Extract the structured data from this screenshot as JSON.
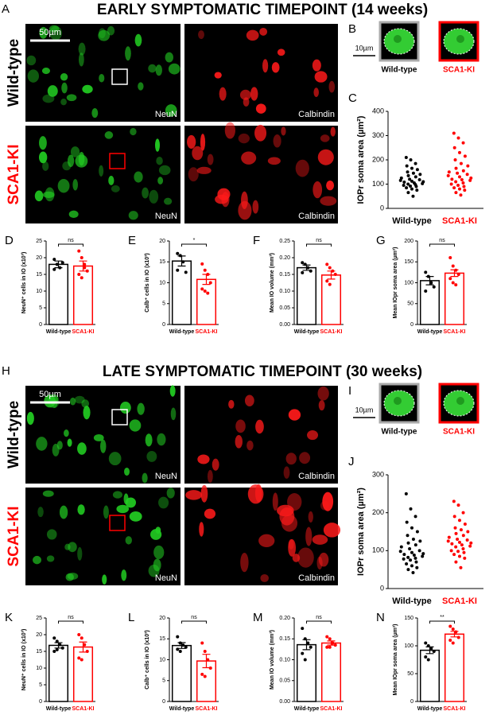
{
  "figure": {
    "sections": [
      {
        "letter": "A",
        "title": "EARLY SYMPTOMATIC TIMEPOINT (14 weeks)",
        "rows": [
          "Wild-type",
          "SCA1-KI"
        ],
        "stains": [
          "NeuN",
          "Calbindin"
        ],
        "scale_bar": "50µm",
        "inset_letter": "B",
        "inset_scale": "10µm",
        "inset_labels": [
          "Wild-type",
          "SCA1-KI"
        ]
      },
      {
        "letter": "H",
        "title": "LATE SYMPTOMATIC TIMEPOINT (30 weeks)",
        "rows": [
          "Wild-type",
          "SCA1-KI"
        ],
        "stains": [
          "NeuN",
          "Calbindin"
        ],
        "scale_bar": "50µm",
        "inset_letter": "I",
        "inset_scale": "10µm",
        "inset_labels": [
          "Wild-type",
          "SCA1-KI"
        ]
      }
    ]
  },
  "chart_data": [
    {
      "type": "strip",
      "letter": "C",
      "ylabel": "IOPr soma area (µm²)",
      "categories": [
        "Wild-type",
        "SCA1-KI"
      ],
      "colors": [
        "#000000",
        "#ff0000"
      ],
      "ylim": [
        0,
        400
      ],
      "yticks": [
        0,
        100,
        200,
        300,
        400
      ],
      "points": [
        [
          210,
          200,
          185,
          175,
          165,
          160,
          150,
          145,
          140,
          135,
          130,
          125,
          120,
          118,
          115,
          112,
          110,
          108,
          105,
          102,
          100,
          98,
          95,
          92,
          90,
          85,
          80,
          75,
          65,
          50
        ],
        [
          310,
          290,
          270,
          250,
          230,
          215,
          200,
          185,
          175,
          165,
          155,
          150,
          145,
          140,
          135,
          130,
          125,
          120,
          118,
          115,
          110,
          105,
          100,
          95,
          90,
          85,
          80,
          75,
          65,
          55
        ]
      ]
    },
    {
      "type": "bar",
      "letter": "D",
      "ylabel": "NeuN⁺ cells in IO (x10³)",
      "categories": [
        "Wild-type",
        "SCA1-KI"
      ],
      "colors": [
        "#000000",
        "#ff0000"
      ],
      "ylim": [
        0,
        25
      ],
      "yticks": [
        0,
        5,
        10,
        15,
        20,
        25
      ],
      "values": [
        18,
        17.5
      ],
      "errors": [
        1,
        1.5
      ],
      "points": [
        [
          19.5,
          18,
          17,
          18.5,
          16.5
        ],
        [
          22,
          20,
          17,
          16,
          15,
          14,
          18
        ]
      ],
      "significance": "ns"
    },
    {
      "type": "bar",
      "letter": "E",
      "ylabel": "Calb⁺ cells in IO (x10³)",
      "categories": [
        "Wild-type",
        "SCA1-KI"
      ],
      "colors": [
        "#000000",
        "#ff0000"
      ],
      "ylim": [
        0,
        20
      ],
      "yticks": [
        0,
        5,
        10,
        15,
        20
      ],
      "values": [
        15.2,
        10.8
      ],
      "errors": [
        1.2,
        1.2
      ],
      "points": [
        [
          17,
          16.5,
          15,
          12.5,
          13
        ],
        [
          14.5,
          13,
          12,
          10,
          8.5,
          8,
          7.5
        ]
      ],
      "significance": "*"
    },
    {
      "type": "bar",
      "letter": "F",
      "ylabel": "Mean IO volume (mm³)",
      "categories": [
        "Wild-type",
        "SCA1-KI"
      ],
      "colors": [
        "#000000",
        "#ff0000"
      ],
      "ylim": [
        0,
        0.25
      ],
      "yticks": [
        {
          "value": 0,
          "label": "0.00"
        },
        {
          "value": 0.05,
          "label": "0.05"
        },
        {
          "value": 0.1,
          "label": "0.10"
        },
        {
          "value": 0.15,
          "label": "0.15"
        },
        {
          "value": 0.2,
          "label": "0.20"
        },
        {
          "value": 0.25,
          "label": "0.25"
        }
      ],
      "values": [
        0.17,
        0.148
      ],
      "errors": [
        0.008,
        0.012
      ],
      "points": [
        [
          0.185,
          0.18,
          0.17,
          0.16,
          0.155
        ],
        [
          0.18,
          0.17,
          0.16,
          0.15,
          0.13,
          0.12
        ]
      ],
      "significance": "ns"
    },
    {
      "type": "bar",
      "letter": "G",
      "ylabel": "Mean IOpr soma area (µm²)",
      "categories": [
        "Wild-type",
        "SCA1-KI"
      ],
      "colors": [
        "#000000",
        "#ff0000"
      ],
      "ylim": [
        0,
        200
      ],
      "yticks": [
        0,
        50,
        100,
        150,
        200
      ],
      "values": [
        105,
        123
      ],
      "errors": [
        10,
        8
      ],
      "points": [
        [
          125,
          115,
          100,
          90,
          80
        ],
        [
          160,
          140,
          130,
          120,
          110,
          100,
          95
        ]
      ],
      "significance": "ns"
    },
    {
      "type": "strip",
      "letter": "J",
      "ylabel": "IOPr soma area (µm²)",
      "categories": [
        "Wild-type",
        "SCA1-KI"
      ],
      "colors": [
        "#000000",
        "#ff0000"
      ],
      "ylim": [
        0,
        300
      ],
      "yticks": [
        0,
        100,
        200,
        300
      ],
      "points": [
        [
          250,
          210,
          190,
          175,
          160,
          150,
          140,
          130,
          125,
          120,
          115,
          110,
          105,
          100,
          98,
          95,
          92,
          90,
          88,
          85,
          82,
          80,
          78,
          75,
          70,
          65,
          60,
          55,
          50,
          42
        ],
        [
          230,
          220,
          200,
          190,
          180,
          170,
          160,
          155,
          150,
          145,
          140,
          135,
          130,
          128,
          125,
          122,
          120,
          118,
          115,
          112,
          110,
          105,
          100,
          98,
          95,
          90,
          85,
          80,
          70,
          55
        ]
      ]
    },
    {
      "type": "bar",
      "letter": "K",
      "ylabel": "NeuN⁺ cells in IO (x10³)",
      "categories": [
        "Wild-type",
        "SCA1-KI"
      ],
      "colors": [
        "#000000",
        "#ff0000"
      ],
      "ylim": [
        0,
        25
      ],
      "yticks": [
        0,
        5,
        10,
        15,
        20,
        25
      ],
      "values": [
        16.8,
        16.3
      ],
      "errors": [
        0.8,
        1.5
      ],
      "points": [
        [
          19,
          18,
          17,
          16,
          15,
          15.5
        ],
        [
          20,
          19,
          17,
          15,
          13,
          12.5
        ]
      ],
      "significance": "ns"
    },
    {
      "type": "bar",
      "letter": "L",
      "ylabel": "Calb⁺ cells in IO (x10³)",
      "categories": [
        "Wild-type",
        "SCA1-KI"
      ],
      "colors": [
        "#000000",
        "#ff0000"
      ],
      "ylim": [
        0,
        20
      ],
      "yticks": [
        0,
        5,
        10,
        15,
        20
      ],
      "values": [
        13.4,
        9.7
      ],
      "errors": [
        0.7,
        1.6
      ],
      "points": [
        [
          15.5,
          14,
          13.5,
          13,
          12.5,
          12
        ],
        [
          14,
          12,
          10,
          8,
          6.5,
          6
        ]
      ],
      "significance": "ns"
    },
    {
      "type": "bar",
      "letter": "M",
      "ylabel": "Mean IO volume (mm³)",
      "categories": [
        "Wild-type",
        "SCA1-KI"
      ],
      "colors": [
        "#000000",
        "#ff0000"
      ],
      "ylim": [
        0,
        0.2
      ],
      "yticks": [
        {
          "value": 0,
          "label": "0.00"
        },
        {
          "value": 0.05,
          "label": "0.05"
        },
        {
          "value": 0.1,
          "label": "0.10"
        },
        {
          "value": 0.15,
          "label": "0.15"
        },
        {
          "value": 0.2,
          "label": "0.20"
        }
      ],
      "values": [
        0.136,
        0.14
      ],
      "errors": [
        0.012,
        0.005
      ],
      "points": [
        [
          0.175,
          0.15,
          0.14,
          0.13,
          0.115,
          0.1
        ],
        [
          0.155,
          0.15,
          0.14,
          0.135,
          0.13,
          0.13
        ]
      ],
      "significance": "ns"
    },
    {
      "type": "bar",
      "letter": "N",
      "ylabel": "Mean IOpr soma area (µm²)",
      "categories": [
        "Wild-type",
        "SCA1-KI"
      ],
      "colors": [
        "#000000",
        "#ff0000"
      ],
      "ylim": [
        0,
        150
      ],
      "yticks": [
        0,
        50,
        100,
        150
      ],
      "values": [
        92,
        121
      ],
      "errors": [
        6,
        5
      ],
      "points": [
        [
          105,
          100,
          95,
          90,
          80,
          75
        ],
        [
          135,
          130,
          125,
          115,
          110,
          105
        ]
      ],
      "significance": "**"
    }
  ]
}
